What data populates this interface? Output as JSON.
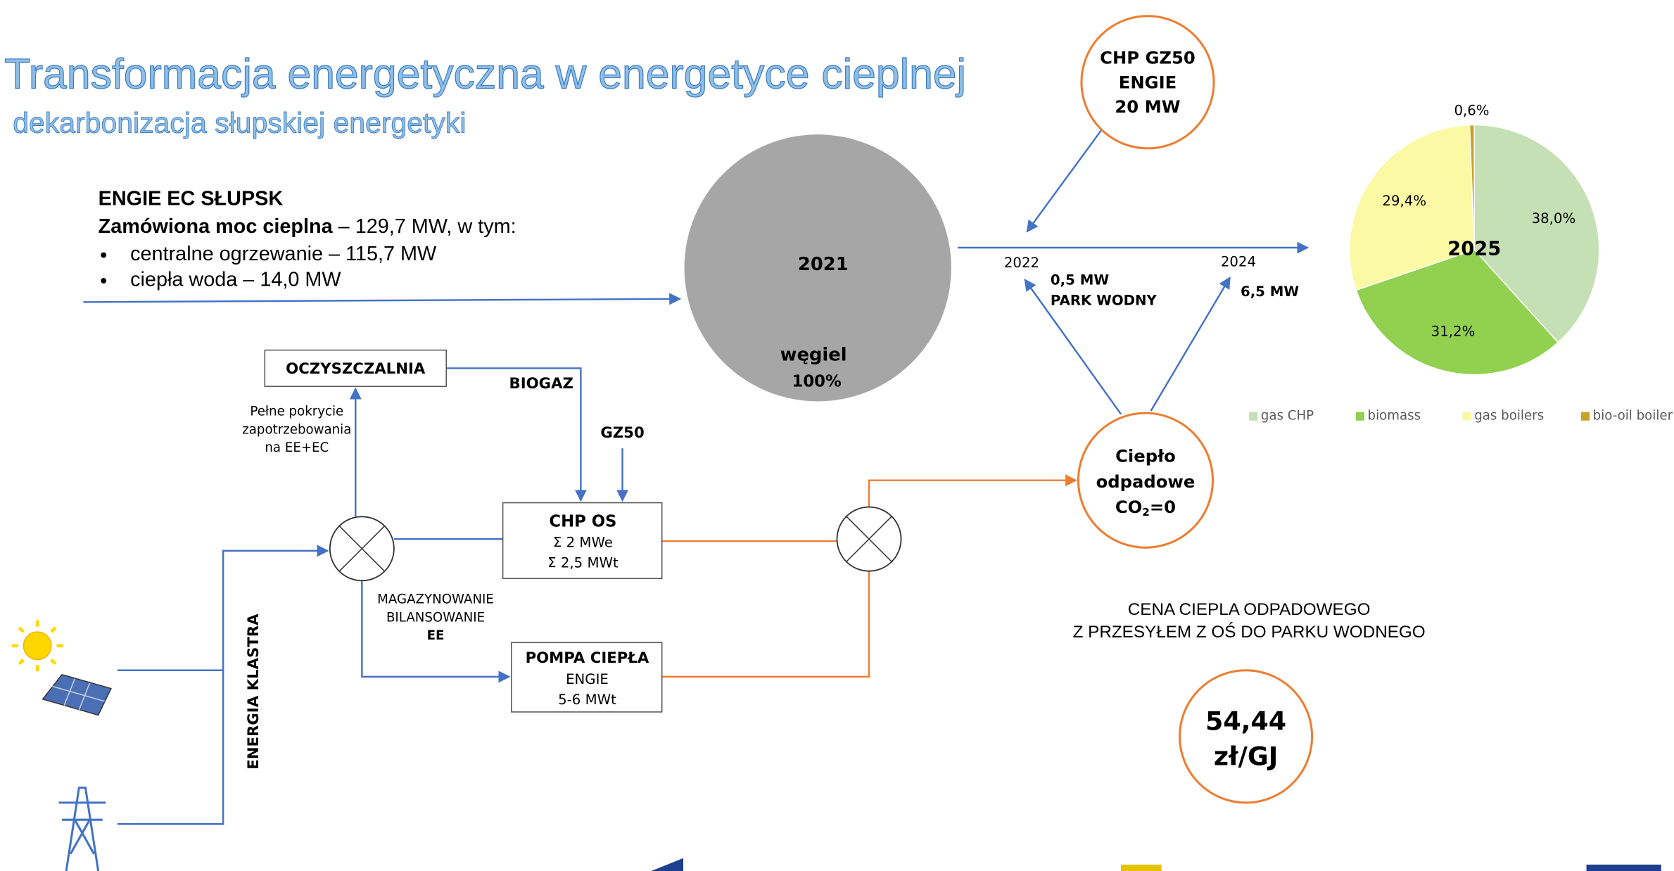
{
  "header": {
    "title": "Transformacja energetyczna w energetyce cieplnej",
    "subtitle": "dekarbonizacja słupskiej energetyki"
  },
  "info": {
    "heading": "ENGIE EC SŁUPSK",
    "lead_bold": "Zamówiona moc cieplna",
    "lead_rest": " – 129,7 MW, w tym:",
    "bullets": [
      "centralne ogrzewanie – 115,7 MW",
      "ciepła woda – 14,0 MW"
    ]
  },
  "coal": {
    "year": "2021",
    "fuel": "węgiel",
    "share": "100%"
  },
  "chp_gz50": {
    "lines": [
      "CHP GZ50",
      "ENGIE",
      "20 MW"
    ]
  },
  "timeline": {
    "year_a": "2022",
    "year_b": "2024",
    "label_a": [
      "0,5 MW",
      "PARK WODNY"
    ],
    "label_b": "6,5 MW"
  },
  "nodes": {
    "oczyszczalnia": "OCZYSZCZALNIA",
    "chp_os": [
      "CHP OS",
      "Σ 2 MWe",
      "Σ 2,5 MWt"
    ],
    "pompa": [
      "POMPA CIEPŁA",
      "ENGIE",
      "5-6 MWt"
    ],
    "waste_heat": {
      "lines": [
        "Ciepło",
        "odpadowe"
      ],
      "co2_base": "CO",
      "co2_sub": "2",
      "co2_rest": "=0"
    }
  },
  "labels": {
    "biogaz": "BIOGAZ",
    "gz50": "GZ50",
    "coverage": [
      "Pełne pokrycie",
      "zapotrzebowania",
      "na EE+EC"
    ],
    "storage": [
      "MAGAZYNOWANIE",
      "BILANSOWANIE",
      "EE"
    ],
    "cluster": "ENERGIA KLASTRA"
  },
  "price": {
    "caption": [
      "CENA CIEPLA ODPADOWEGO",
      "Z PRZESYŁEM Z OŚ DO PARKU WODNEGO"
    ],
    "value": "54,44",
    "unit": "zł/GJ"
  },
  "pie_chart": {
    "type": "pie",
    "center_label": "2025",
    "categories": [
      "gas CHP",
      "biomass",
      "gas boilers",
      "bio-oil boiler"
    ],
    "values": [
      38.0,
      31.2,
      29.4,
      0.6
    ],
    "value_labels": [
      "38,0%",
      "31,2%",
      "29,4%",
      "0,6%"
    ],
    "colors": [
      "#c5e0b4",
      "#92d050",
      "#fbf9a3",
      "#c9a227"
    ]
  }
}
